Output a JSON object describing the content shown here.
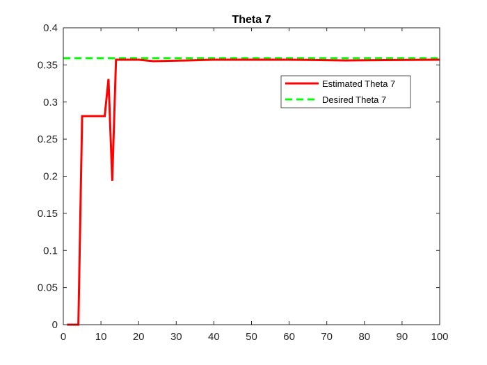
{
  "chart_data": {
    "type": "line",
    "title": "Theta 7",
    "xlabel": "",
    "ylabel": "",
    "xlim": [
      0,
      100
    ],
    "ylim": [
      0,
      0.4
    ],
    "x_ticks": [
      0,
      10,
      20,
      30,
      40,
      50,
      60,
      70,
      80,
      90,
      100
    ],
    "y_ticks": [
      0,
      0.05,
      0.1,
      0.15,
      0.2,
      0.25,
      0.3,
      0.35,
      0.4
    ],
    "x_tick_labels": [
      "0",
      "10",
      "20",
      "30",
      "40",
      "50",
      "60",
      "70",
      "80",
      "90",
      "100"
    ],
    "y_tick_labels": [
      "0",
      "0.05",
      "0.1",
      "0.15",
      "0.2",
      "0.25",
      "0.3",
      "0.35",
      "0.4"
    ],
    "grid": false,
    "legend_position": "top-right",
    "series": [
      {
        "name": "Estimated Theta 7",
        "color": "#ff0000",
        "style": "solid",
        "x": [
          1,
          4,
          5,
          6,
          11,
          12,
          13,
          14,
          20,
          22,
          24,
          33,
          40,
          60,
          75,
          100
        ],
        "y": [
          0,
          0,
          0.281,
          0.281,
          0.281,
          0.331,
          0.194,
          0.357,
          0.357,
          0.356,
          0.355,
          0.356,
          0.357,
          0.357,
          0.356,
          0.357
        ]
      },
      {
        "name": "Desired Theta 7",
        "color": "#00ff00",
        "style": "dashed",
        "x": [
          0,
          100
        ],
        "y": [
          0.359,
          0.359
        ]
      }
    ]
  }
}
